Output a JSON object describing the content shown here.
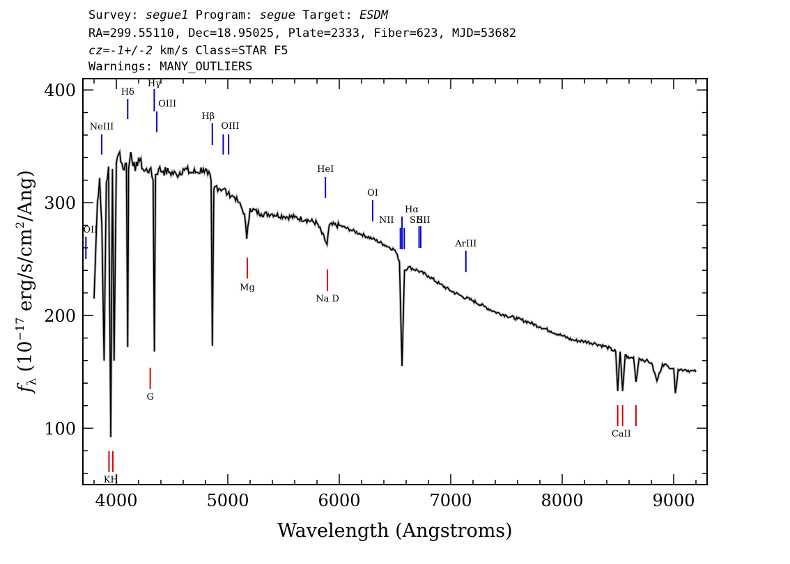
{
  "header": {
    "survey_label": "Survey:",
    "survey": "segue1",
    "program_label": "Program:",
    "program": "segue",
    "target_label": "Target:",
    "target": "ESDM",
    "line2": "RA=299.55110, Dec=18.95025, Plate=2333, Fiber=623, MJD=53682",
    "cz_label": "cz=",
    "cz_value": "-1+/-2",
    "cz_units": " km/s Class=STAR F5",
    "warnings": "Warnings: MANY_OUTLIERS"
  },
  "chart_data": {
    "type": "line",
    "xlabel": "Wavelength (Angstroms)",
    "ylabel": "fλ (10^-17 erg/s/cm^2/Ang)",
    "xlim": [
      3700,
      9300
    ],
    "ylim": [
      50,
      410
    ],
    "xticks": [
      4000,
      5000,
      6000,
      7000,
      8000,
      9000
    ],
    "yticks": [
      100,
      200,
      300,
      400
    ],
    "grid": false,
    "series_color": "#000000",
    "error_color": "#b0b0b0",
    "emission_color": "#0000cc",
    "absorption_color": "#dd0000",
    "spectrum": {
      "x": [
        3800,
        3830,
        3850,
        3870,
        3890,
        3910,
        3930,
        3950,
        3965,
        3980,
        4000,
        4030,
        4060,
        4090,
        4102,
        4110,
        4130,
        4170,
        4200,
        4250,
        4300,
        4330,
        4341,
        4352,
        4380,
        4420,
        4480,
        4540,
        4600,
        4660,
        4720,
        4780,
        4820,
        4850,
        4861,
        4875,
        4900,
        4960,
        5000,
        5060,
        5100,
        5150,
        5170,
        5200,
        5300,
        5400,
        5500,
        5600,
        5700,
        5800,
        5890,
        5910,
        6000,
        6100,
        6200,
        6300,
        6400,
        6500,
        6540,
        6563,
        6585,
        6620,
        6700,
        6800,
        6900,
        7000,
        7100,
        7200,
        7300,
        7400,
        7500,
        7600,
        7700,
        7800,
        7900,
        8000,
        8100,
        8200,
        8300,
        8400,
        8480,
        8498,
        8520,
        8542,
        8565,
        8600,
        8640,
        8662,
        8690,
        8750,
        8800,
        8850,
        8900,
        8950,
        9000,
        9015,
        9040,
        9100,
        9150,
        9200
      ],
      "y": [
        215,
        300,
        322,
        280,
        160,
        318,
        332,
        92,
        330,
        160,
        335,
        345,
        330,
        335,
        172,
        330,
        345,
        328,
        340,
        328,
        330,
        320,
        168,
        325,
        330,
        328,
        327,
        325,
        330,
        327,
        327,
        330,
        325,
        320,
        173,
        312,
        315,
        312,
        308,
        305,
        300,
        290,
        268,
        295,
        290,
        290,
        288,
        287,
        285,
        282,
        263,
        280,
        280,
        276,
        272,
        268,
        263,
        258,
        248,
        155,
        240,
        243,
        240,
        235,
        228,
        222,
        217,
        213,
        208,
        203,
        200,
        197,
        194,
        190,
        186,
        182,
        178,
        177,
        175,
        172,
        168,
        133,
        168,
        133,
        165,
        162,
        163,
        141,
        162,
        160,
        158,
        142,
        157,
        155,
        153,
        131,
        152,
        152,
        151,
        150
      ]
    },
    "emission_lines": [
      {
        "label": "OII",
        "x": 3727
      },
      {
        "label": "NeIII",
        "x": 3869
      },
      {
        "label": "Hδ",
        "x": 4102
      },
      {
        "label": "Hγ",
        "x": 4340
      },
      {
        "label": "OIII",
        "x": 4363
      },
      {
        "label": "Hβ",
        "x": 4861
      },
      {
        "label": "OIII",
        "x": 4959
      },
      {
        "label": "OIII",
        "x": 5007
      },
      {
        "label": "HeI",
        "x": 5876
      },
      {
        "label": "OI",
        "x": 6300
      },
      {
        "label": "NII",
        "x": 6548
      },
      {
        "label": "Hα",
        "x": 6563
      },
      {
        "label": "NII",
        "x": 6583
      },
      {
        "label": "SII",
        "x": 6716
      },
      {
        "label": "SII",
        "x": 6731
      },
      {
        "label": "ArIII",
        "x": 7136
      }
    ],
    "absorption_lines": [
      {
        "label": "K",
        "x": 3934
      },
      {
        "label": "H",
        "x": 3969
      },
      {
        "label": "G",
        "x": 4304
      },
      {
        "label": "Mg",
        "x": 5175
      },
      {
        "label": "Na D",
        "x": 5894
      },
      {
        "label": "CaII",
        "x": 8498
      },
      {
        "label": "CaII",
        "x": 8542
      },
      {
        "label": "CaII",
        "x": 8662
      }
    ]
  }
}
